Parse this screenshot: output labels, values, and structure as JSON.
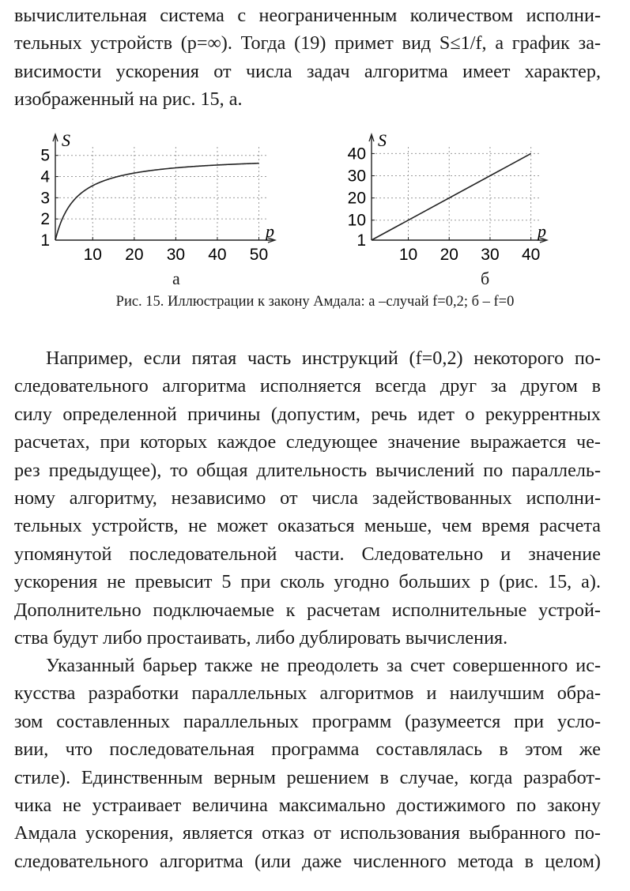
{
  "top_paragraph": {
    "lines": [
      "вычислительная система с неограниченным количеством исполни-",
      "тельных устройств (p=∞). Тогда (19) примет вид S≤1/f, а график за-",
      "висимости ускорения от числа задач алгоритма имеет характер,",
      "изображенный на рис. 15, а."
    ]
  },
  "figure": {
    "caption": "Рис. 15. Иллюстрации к закону Амдала: а –случай f=0,2; б – f=0",
    "label_a": "а",
    "label_b": "б"
  },
  "chart_data": [
    {
      "type": "line",
      "panel": "а",
      "ylabel": "S",
      "xlabel": "p",
      "x_ticks": [
        "10",
        "20",
        "30",
        "40",
        "50"
      ],
      "y_ticks": [
        "1",
        "2",
        "3",
        "4",
        "5"
      ],
      "xlim": [
        1,
        52
      ],
      "ylim": [
        1,
        5.4
      ],
      "grid": true,
      "series": [
        {
          "x": [
            1,
            2,
            3,
            5,
            7,
            10,
            15,
            20,
            25,
            30,
            35,
            40,
            45,
            50
          ],
          "values": [
            1.0,
            1.67,
            2.14,
            2.78,
            3.18,
            3.57,
            3.95,
            4.17,
            4.31,
            4.41,
            4.49,
            4.55,
            4.59,
            4.63
          ]
        }
      ]
    },
    {
      "type": "line",
      "panel": "б",
      "ylabel": "S",
      "xlabel": "p",
      "x_ticks": [
        "10",
        "20",
        "30",
        "40"
      ],
      "y_ticks": [
        "1",
        "10",
        "20",
        "30",
        "40"
      ],
      "xlim": [
        1,
        42
      ],
      "ylim": [
        1,
        43
      ],
      "grid": true,
      "series": [
        {
          "x": [
            1,
            40
          ],
          "values": [
            1,
            40
          ]
        }
      ]
    }
  ],
  "body_paragraph_1": {
    "lines": [
      "Например, если пятая часть инструкций (f=0,2) некоторого по-",
      "следовательного алгоритма исполняется всегда друг за другом в",
      "силу определенной причины (допустим, речь идет о рекуррентных",
      "расчетах, при которых каждое следующее значение выражается че-",
      "рез предыдущее), то общая длительность вычислений по параллель-",
      "ному алгоритму, независимо от числа задействованных исполни-",
      "тельных устройств, не может оказаться меньше, чем время расчета",
      "упомянутой последовательной части. Следовательно и значение",
      "ускорения не превысит 5 при сколь угодно больших p (рис. 15, а).",
      "Дополнительно подключаемые к расчетам исполнительные устрой-",
      "ства будут либо простаивать, либо дублировать вычисления."
    ]
  },
  "body_paragraph_2": {
    "lines": [
      "Указанный барьер также не преодолеть за счет совершенного ис-",
      "кусства разработки параллельных алгоритмов и наилучшим обра-",
      "зом составленных параллельных программ (разумеется при усло-",
      "вии, что последовательная программа составлялась в этом же",
      "стиле). Единственным верным решением в случае, когда разработ-",
      "чика не устраивает величина максимально достижимого по закону",
      "Амдала ускорения, является отказ от использования выбранного по-",
      "следовательного алгоритма (или даже численного метода в целом)"
    ]
  }
}
